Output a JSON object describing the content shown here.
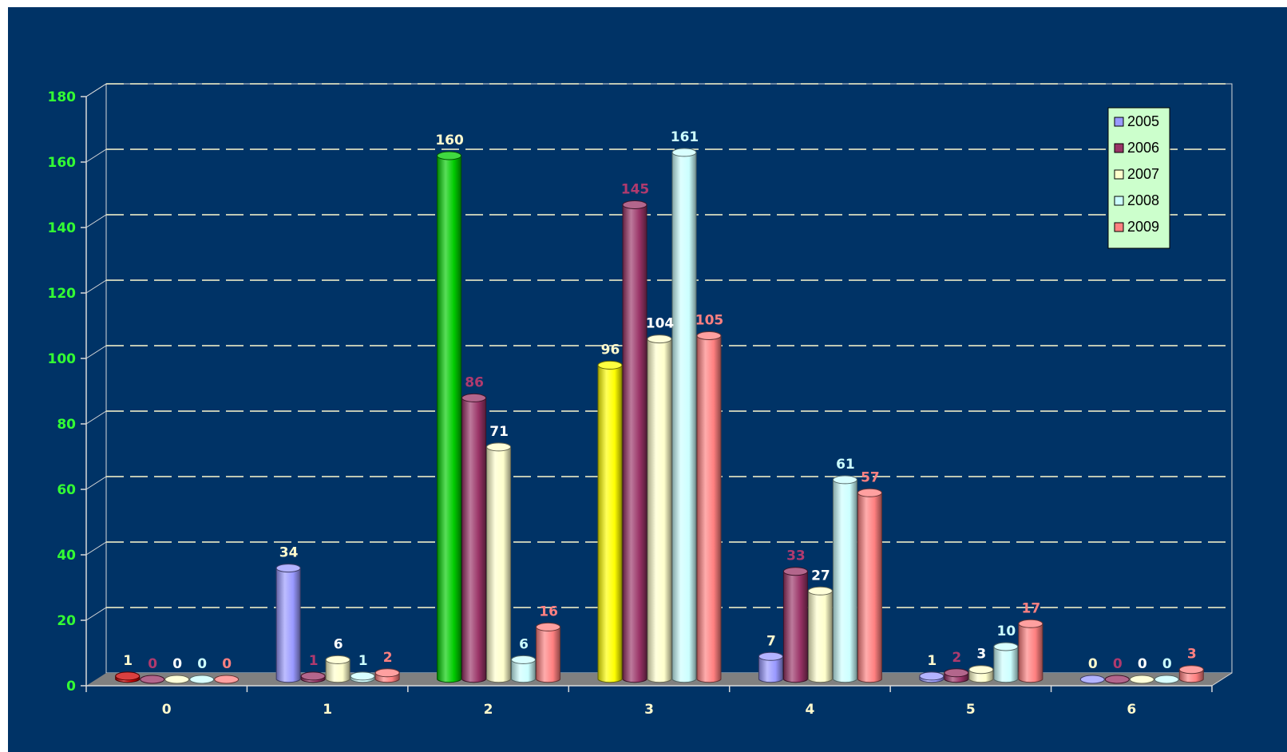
{
  "colors": {
    "background": "#003366",
    "plot_floor": "#808080",
    "axis": "#d9d9d9",
    "gridline": "#fffacd",
    "y_tick_text": "#33ff33",
    "x_tick_text": "#fffacd",
    "legend_background": "#ccffcc"
  },
  "chart_data": {
    "type": "bar",
    "style": "3d-cylinder",
    "title": "",
    "xlabel": "",
    "ylabel": "",
    "categories": [
      "0",
      "1",
      "2",
      "3",
      "4",
      "5",
      "6"
    ],
    "ylim": [
      0,
      180
    ],
    "yticks": [
      0,
      20,
      40,
      60,
      80,
      100,
      120,
      140,
      160,
      180
    ],
    "grid": true,
    "legend_position": "top-right",
    "series": [
      {
        "name": "2005",
        "color": "#9999ff",
        "label_color": "#fffacd",
        "values": [
          1,
          34,
          160,
          96,
          7,
          1,
          0
        ]
      },
      {
        "name": "2006",
        "color": "#993366",
        "label_color": "#b03a6e",
        "values": [
          0,
          1,
          86,
          145,
          33,
          2,
          0
        ]
      },
      {
        "name": "2007",
        "color": "#ffffcc",
        "label_color": "#ffffff",
        "values": [
          0,
          6,
          71,
          104,
          27,
          3,
          0
        ]
      },
      {
        "name": "2008",
        "color": "#ccffff",
        "label_color": "#ccffff",
        "values": [
          0,
          1,
          6,
          161,
          61,
          10,
          0
        ]
      },
      {
        "name": "2009",
        "color": "#ff8080",
        "label_color": "#ff8080",
        "values": [
          0,
          2,
          16,
          105,
          57,
          17,
          3
        ]
      }
    ],
    "highlighted_bars": [
      {
        "series": "2005",
        "category": "0",
        "color": "#cc0000"
      },
      {
        "series": "2005",
        "category": "2",
        "color": "#00cc00"
      },
      {
        "series": "2005",
        "category": "3",
        "color": "#ffff00"
      }
    ]
  }
}
